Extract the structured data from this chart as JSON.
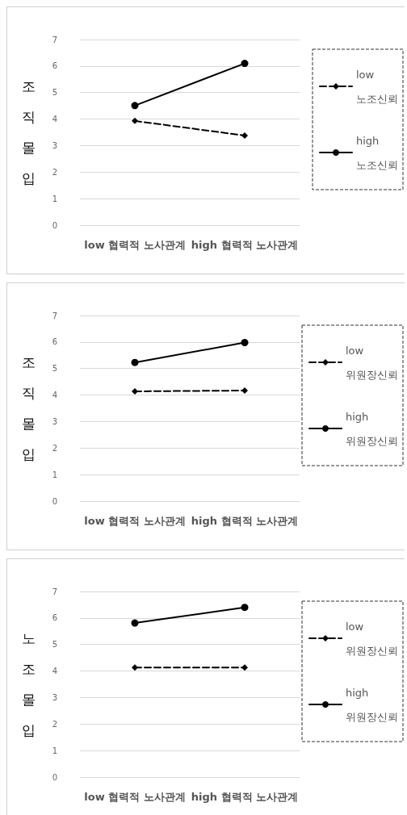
{
  "chart_data": [
    {
      "type": "line",
      "categories": [
        "low 협력적 노사관계",
        "high 협력적 노사관계"
      ],
      "ylabel": "조직몰입",
      "ylim": [
        0,
        7
      ],
      "yticks": [
        0,
        1,
        2,
        3,
        4,
        5,
        6,
        7
      ],
      "grid": "y",
      "legend": "right",
      "series": [
        {
          "name": "low 노조신뢰",
          "color": "#000000",
          "marker": "diamond",
          "line_style": "dashed",
          "values": [
            3.93,
            3.38
          ]
        },
        {
          "name": "high 노조신뢰",
          "color": "#000000",
          "marker": "circle",
          "line_style": "solid",
          "values": [
            4.51,
            6.1
          ]
        }
      ]
    },
    {
      "type": "line",
      "categories": [
        "low 협력적 노사관계",
        "high 협력적 노사관계"
      ],
      "ylabel": "조직몰입",
      "ylim": [
        0,
        7
      ],
      "yticks": [
        0,
        1,
        2,
        3,
        4,
        5,
        6,
        7
      ],
      "grid": "y",
      "legend": "right",
      "series": [
        {
          "name": "low 위원장신뢰",
          "color": "#000000",
          "marker": "diamond",
          "line_style": "dashed",
          "values": [
            4.14,
            4.17
          ]
        },
        {
          "name": "high 위원장신뢰",
          "color": "#000000",
          "marker": "circle",
          "line_style": "solid",
          "values": [
            5.23,
            5.98
          ]
        }
      ]
    },
    {
      "type": "line",
      "categories": [
        "low 협력적 노사관계",
        "high 협력적 노사관계"
      ],
      "ylabel": "노조몰입",
      "ylim": [
        0,
        7
      ],
      "yticks": [
        0,
        1,
        2,
        3,
        4,
        5,
        6,
        7
      ],
      "grid": "y",
      "legend": "right",
      "series": [
        {
          "name": "low 위원장신뢰",
          "color": "#000000",
          "marker": "diamond",
          "line_style": "dashed",
          "values": [
            4.13,
            4.13
          ]
        },
        {
          "name": "high 위원장신뢰",
          "color": "#000000",
          "marker": "circle",
          "line_style": "solid",
          "values": [
            5.81,
            6.4
          ]
        }
      ]
    }
  ]
}
